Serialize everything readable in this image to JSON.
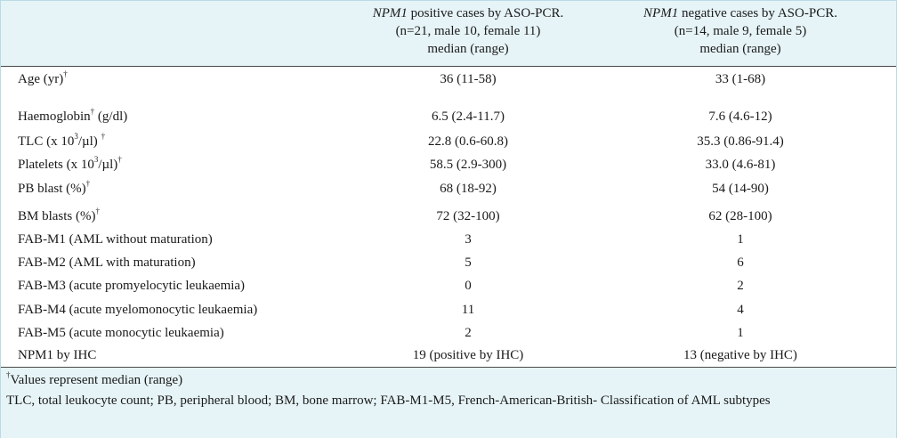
{
  "header": {
    "col1": {
      "gene": "NPM1",
      "line1_rest": " positive cases by ASO-PCR.",
      "line2": "(n=21, male 10, female 11)",
      "line3": "median (range)"
    },
    "col2": {
      "gene": "NPM1",
      "line1_rest": " negative cases by ASO-PCR.",
      "line2": "(n=14, male 9, female 5)",
      "line3": "median (range)"
    }
  },
  "dagger": "†",
  "rows": [
    {
      "label": "Age (yr)",
      "mark": "†",
      "v1": "36 (11-58)",
      "v2": "33 (1-68)"
    },
    {
      "label": "Haemoglobin",
      "mark": "†",
      "label_tail": " (g/dl)",
      "v1": "6.5 (2.4-11.7)",
      "v2": "7.6 (4.6-12)"
    },
    {
      "label": "TLC (x 10",
      "exp": "3",
      "label_tail": "/µl) ",
      "mark": "†",
      "v1": "22.8 (0.6-60.8)",
      "v2": "35.3 (0.86-91.4)"
    },
    {
      "label": "Platelets (x 10",
      "exp": "3",
      "label_tail": "/µl)",
      "mark": "†",
      "v1": "58.5 (2.9-300)",
      "v2": "33.0 (4.6-81)"
    },
    {
      "label": "PB blast (%)",
      "mark": "†",
      "v1": "68 (18-92)",
      "v2": "54 (14-90)"
    },
    {
      "label": "BM blasts (%)",
      "mark": "†",
      "v1": "72 (32-100)",
      "v2": "62 (28-100)"
    },
    {
      "label": "FAB-M1 (AML without maturation)",
      "v1": "3",
      "v2": "1"
    },
    {
      "label": "FAB-M2 (AML with maturation)",
      "v1": "5",
      "v2": "6"
    },
    {
      "label": "FAB-M3 (acute promyelocytic leukaemia)",
      "v1": "0",
      "v2": "2"
    },
    {
      "label": "FAB-M4 (acute myelomonocytic leukaemia)",
      "v1": "11",
      "v2": "4"
    },
    {
      "label": "FAB-M5 (acute monocytic leukaemia)",
      "v1": "2",
      "v2": "1"
    },
    {
      "label": "NPM1 by IHC",
      "v1": "19 (positive by IHC)",
      "v2": "13 (negative by IHC)"
    }
  ],
  "footnotes": {
    "note1": "Values represent median (range)",
    "note2": "TLC, total leukocyte count; PB, peripheral blood; BM, bone marrow; FAB-M1-M5, French-American-British- Classification of AML subtypes"
  }
}
